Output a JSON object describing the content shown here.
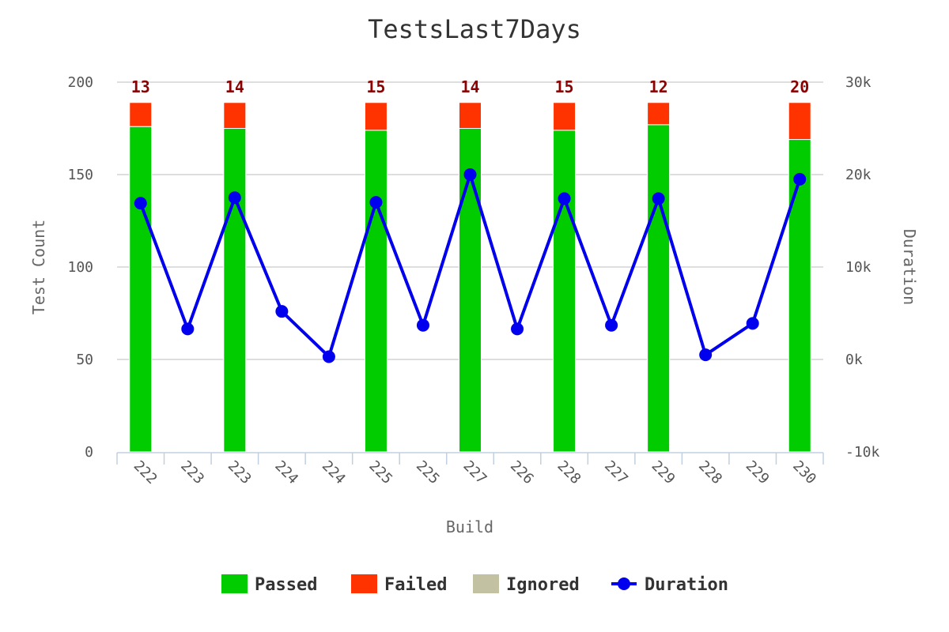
{
  "chart_data": {
    "type": "bar",
    "title": "TestsLast7Days",
    "xlabel": "Build",
    "ylabel": "Test Count",
    "y2label": "Duration",
    "categories": [
      "222",
      "223",
      "223",
      "224",
      "224",
      "225",
      "225",
      "227",
      "226",
      "228",
      "227",
      "229",
      "228",
      "229",
      "230"
    ],
    "ylim": [
      0,
      200
    ],
    "y_ticks": [
      "0",
      "50",
      "100",
      "150",
      "200"
    ],
    "y2lim": [
      -10000,
      30000
    ],
    "y2_ticks": [
      "-10k",
      "0k",
      "10k",
      "20k",
      "30k"
    ],
    "stacked": true,
    "grid": true,
    "legend_position": "bottom",
    "series": [
      {
        "name": "Passed",
        "type": "bar",
        "axis": "left",
        "color": "#00cc00",
        "values": [
          176,
          null,
          175,
          null,
          null,
          174,
          null,
          175,
          null,
          174,
          null,
          177,
          null,
          null,
          169
        ]
      },
      {
        "name": "Failed",
        "type": "bar",
        "axis": "left",
        "color": "#ff3300",
        "values": [
          13,
          null,
          14,
          null,
          null,
          15,
          null,
          14,
          null,
          15,
          null,
          12,
          null,
          null,
          20
        ]
      },
      {
        "name": "Ignored",
        "type": "bar",
        "axis": "left",
        "color": "#c2c2a3",
        "values": [
          0,
          null,
          0,
          null,
          null,
          0,
          null,
          0,
          null,
          0,
          null,
          0,
          null,
          null,
          0
        ]
      },
      {
        "name": "Duration",
        "type": "line",
        "axis": "right",
        "color": "#0000ee",
        "values": [
          16900,
          3300,
          17500,
          5200,
          300,
          17000,
          3700,
          20000,
          3300,
          17400,
          3700,
          17400,
          500,
          3900,
          19500
        ]
      }
    ],
    "data_labels": [
      "13",
      "",
      "14",
      "",
      "",
      "15",
      "",
      "14",
      "",
      "15",
      "",
      "12",
      "",
      "",
      "20"
    ]
  }
}
